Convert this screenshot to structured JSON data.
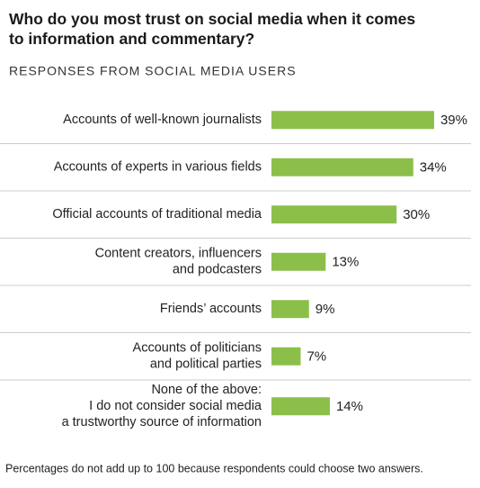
{
  "chart_data": {
    "type": "bar",
    "orientation": "horizontal",
    "title": "Who do you most trust on social media when it comes to information and commentary?",
    "subtitle": "RESPONSES FROM SOCIAL MEDIA USERS",
    "categories": [
      [
        "Accounts of well-known journalists"
      ],
      [
        "Accounts of experts in various fields"
      ],
      [
        "Official accounts of traditional media"
      ],
      [
        "Content creators, influencers",
        "and podcasters"
      ],
      [
        "Friends’ accounts"
      ],
      [
        "Accounts of politicians",
        "and political parties"
      ],
      [
        "None of the above:",
        "I do not consider social media",
        "a trustworthy source of information"
      ]
    ],
    "values": [
      39,
      34,
      30,
      13,
      9,
      7,
      14
    ],
    "value_labels": [
      "39%",
      "34%",
      "30%",
      "13%",
      "9%",
      "7%",
      "14%"
    ],
    "color": "#8cbf4a",
    "note": "Percentages do not add up to 100 because respondents could choose two answers."
  }
}
